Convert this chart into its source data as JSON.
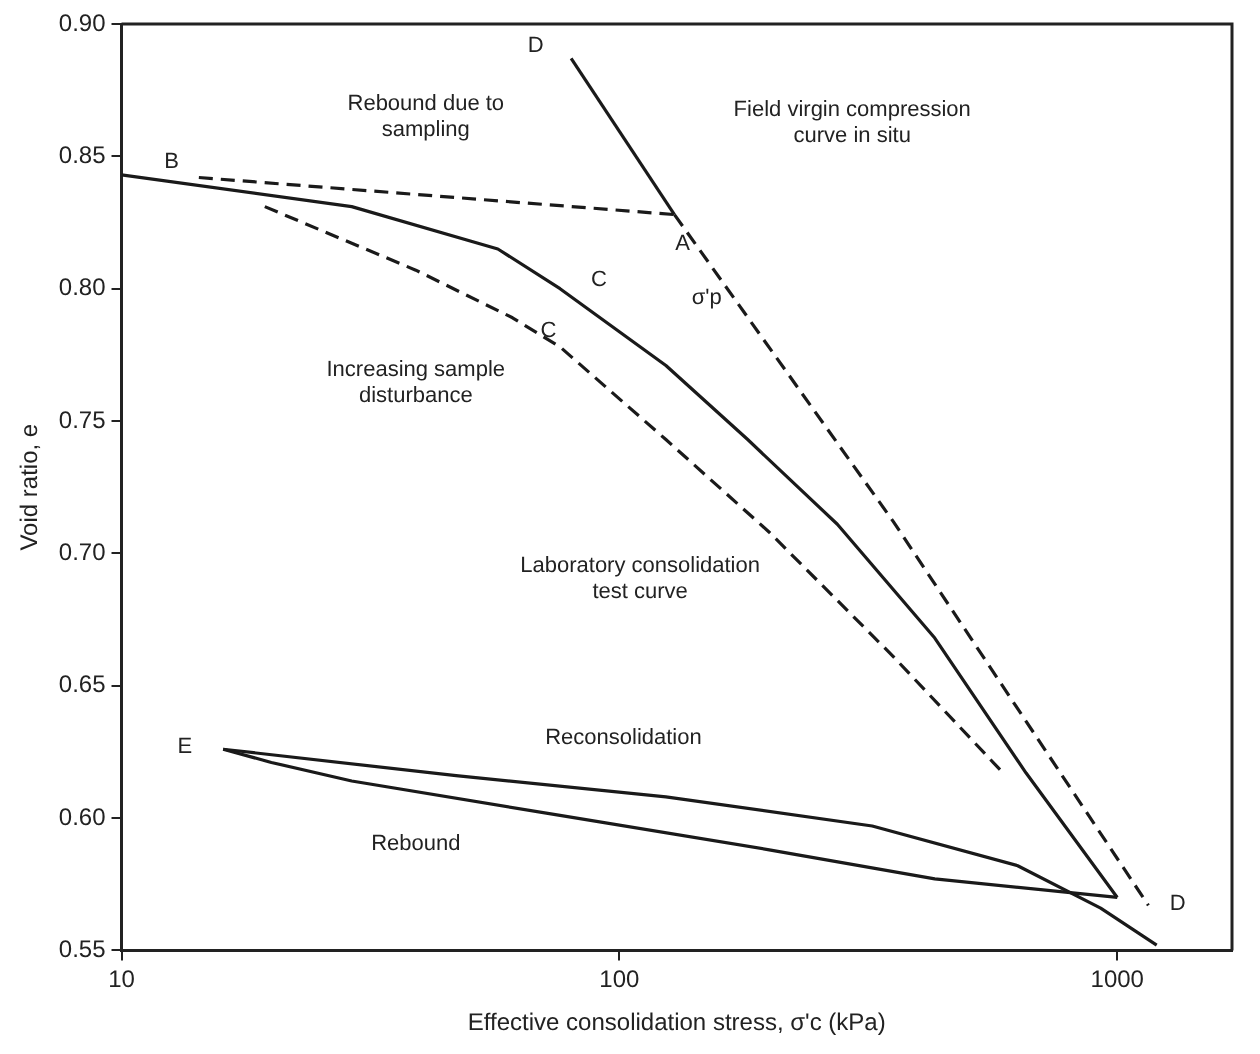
{
  "chart_data": {
    "type": "line",
    "xlabel": "Effective consolidation stress, σ'c (kPa)",
    "ylabel": "Void ratio, e",
    "log": "x",
    "xlim": [
      10,
      1700
    ],
    "xticks": [
      10,
      100,
      1000
    ],
    "ylim": [
      0.55,
      0.9
    ],
    "yticks": [
      {
        "value": 0.55,
        "label": "0.55"
      },
      {
        "value": 0.6,
        "label": "0.60"
      },
      {
        "value": 0.65,
        "label": "0.65"
      },
      {
        "value": 0.7,
        "label": "0.70"
      },
      {
        "value": 0.75,
        "label": "0.75"
      },
      {
        "value": 0.8,
        "label": "0.80"
      },
      {
        "value": 0.85,
        "label": "0.85"
      },
      {
        "value": 0.9,
        "label": "0.90"
      }
    ],
    "grid": false,
    "legend": false,
    "marker": "none",
    "series": [
      {
        "color": "#1a1a1a",
        "line_style": "solid",
        "x": [
          10,
          29,
          57,
          76,
          124,
          181,
          274,
          430,
          656,
          1000
        ],
        "values": [
          0.843,
          0.831,
          0.815,
          0.8,
          0.771,
          0.743,
          0.711,
          0.668,
          0.617,
          0.57
        ]
      },
      {
        "color": "#1a1a1a",
        "line_style": "dashed",
        "x": [
          19.4,
          39,
          61,
          76,
          124,
          200,
          355,
          590
        ],
        "values": [
          0.831,
          0.807,
          0.789,
          0.778,
          0.743,
          0.708,
          0.661,
          0.617
        ]
      },
      {
        "color": "#1a1a1a",
        "line_style": "solid",
        "x": [
          80,
          129
        ],
        "values": [
          0.887,
          0.828
        ]
      },
      {
        "color": "#1a1a1a",
        "line_style": "dashed",
        "x": [
          129,
          355,
          1155
        ],
        "values": [
          0.828,
          0.712,
          0.567
        ]
      },
      {
        "color": "#1a1a1a",
        "line_style": "dashed",
        "x": [
          14.3,
          129
        ],
        "values": [
          0.842,
          0.828
        ]
      },
      {
        "color": "#1a1a1a",
        "line_style": "solid",
        "x": [
          1000,
          430,
          200,
          76,
          29,
          20,
          16
        ],
        "values": [
          0.57,
          0.577,
          0.588,
          0.601,
          0.614,
          0.621,
          0.626
        ]
      },
      {
        "color": "#1a1a1a",
        "line_style": "solid",
        "x": [
          16,
          47,
          124,
          322,
          631,
          926,
          1200
        ],
        "values": [
          0.626,
          0.616,
          0.608,
          0.597,
          0.582,
          0.566,
          0.552
        ]
      }
    ],
    "annotations": [
      "Rebound due to sampling",
      "Field virgin compression curve in situ",
      "Increasing sample disturbance",
      "Laboratory consolidation test curve",
      "Reconsolidation",
      "Rebound",
      "B",
      {
        "text": "A",
        "x": 134,
        "y": 0.817
      },
      "C",
      {
        "text": "C",
        "x": 72,
        "y": 0.784
      },
      "σ'p",
      "D",
      "D",
      "E"
    ]
  }
}
